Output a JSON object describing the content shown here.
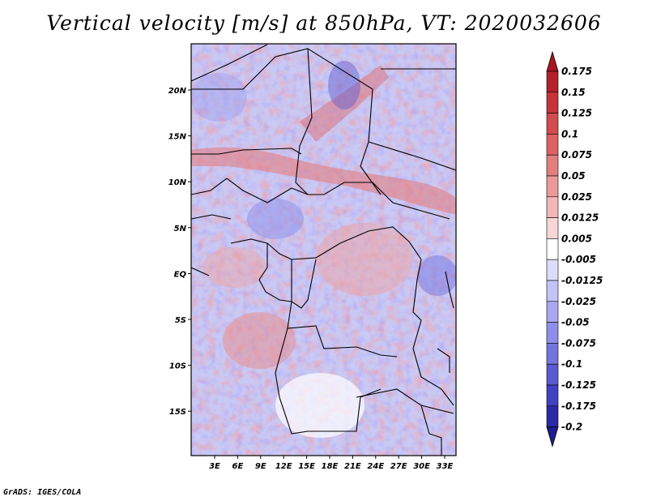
{
  "title": "Vertical velocity [m/s] at 850hPa, VT: 2020032606",
  "footer": "GrADS: IGES/COLA",
  "map": {
    "lat_labels": [
      "20N",
      "15N",
      "10N",
      "5N",
      "EQ",
      "5S",
      "10S",
      "15S"
    ],
    "lon_labels": [
      "3E",
      "6E",
      "9E",
      "12E",
      "15E",
      "18E",
      "21E",
      "24E",
      "27E",
      "30E",
      "33E"
    ],
    "lon_range": [
      0,
      35
    ],
    "lat_range": [
      -20,
      24
    ]
  },
  "colorbar": {
    "labels": [
      "0.175",
      "0.15",
      "0.125",
      "0.1",
      "0.075",
      "0.05",
      "0.025",
      "0.0125",
      "0.005",
      "-0.005",
      "-0.0125",
      "-0.025",
      "-0.05",
      "-0.075",
      "-0.1",
      "-0.125",
      "-0.175",
      "-0.2"
    ],
    "colors": [
      "#b5202a",
      "#c8333a",
      "#d34b4e",
      "#dc6264",
      "#e47d7e",
      "#ec9999",
      "#f3b7b7",
      "#f9d6d6",
      "#ffffff",
      "#dcdcfc",
      "#c3c3f7",
      "#a9a9f1",
      "#8e8eea",
      "#7474e0",
      "#5a5ad3",
      "#4141c2",
      "#2a2aa8"
    ],
    "max_color": "#a8161f",
    "min_color": "#1c1c8c"
  }
}
